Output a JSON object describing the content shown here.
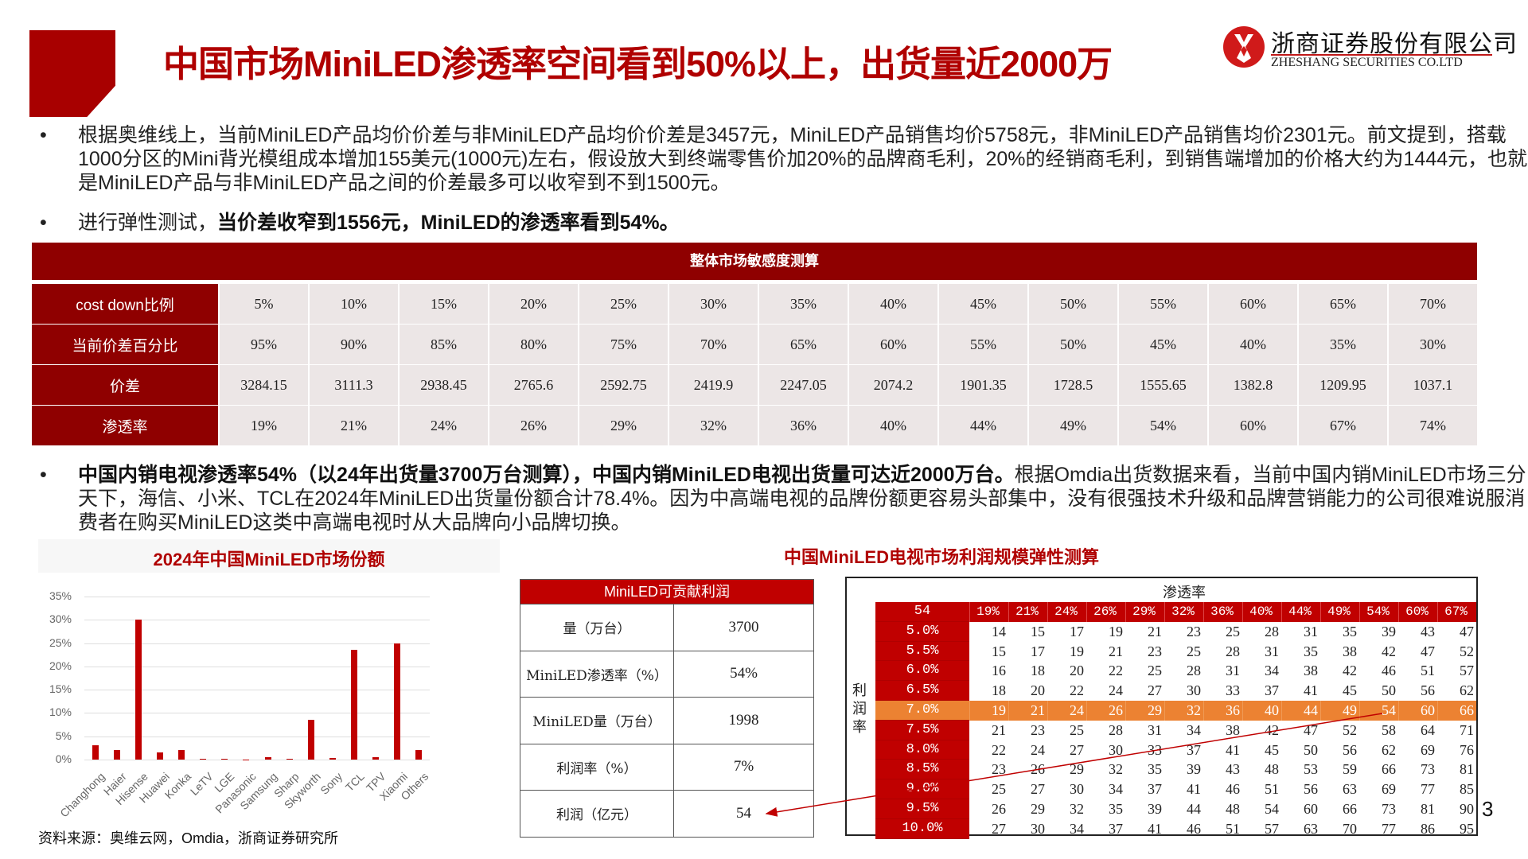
{
  "header": {
    "title": "中国市场MiniLED渗透率空间看到50%以上，出货量近2000万",
    "logo_cn": "浙商证券股份有限公司",
    "logo_en": "ZHESHANG SECURITIES CO.LTD",
    "accent_color": "#b00000"
  },
  "bullets": {
    "b1": "根据奥维线上，当前MiniLED产品均价价差与非MiniLED产品均价价差是3457元，MiniLED产品销售均价5758元，非MiniLED产品销售均价2301元。前文提到，搭载1000分区的Mini背光模组成本增加155美元(1000元)左右，假设放大到终端零售价加20%的品牌商毛利，20%的经销商毛利，到销售端增加的价格大约为1444元，也就是MiniLED产品与非MiniLED产品之间的价差最多可以收窄到不到1500元。",
    "b2_plain": "进行弹性测试，",
    "b2_bold": "当价差收窄到1556元，MiniLED的渗透率看到54%。",
    "b3_bold": "中国内销电视渗透率54%（以24年出货量3700万台测算），中国内销MiniLED电视出货量可达近2000万台。",
    "b3_plain": "根据Omdia出货数据来看，当前中国内销MiniLED市场三分天下，海信、小米、TCL在2024年MiniLED出货量份额合计78.4%。因为中高端电视的品牌份额更容易头部集中，没有很强技术升级和品牌营销能力的公司很难说服消费者在购买MiniLED这类中高端电视时从大品牌向小品牌切换。",
    "dot": "•"
  },
  "sensitivity_table": {
    "title": "整体市场敏感度测算",
    "rows": [
      {
        "label": "cost down比例",
        "values": [
          "5%",
          "10%",
          "15%",
          "20%",
          "25%",
          "30%",
          "35%",
          "40%",
          "45%",
          "50%",
          "55%",
          "60%",
          "65%",
          "70%"
        ]
      },
      {
        "label": "当前价差百分比",
        "values": [
          "95%",
          "90%",
          "85%",
          "80%",
          "75%",
          "70%",
          "65%",
          "60%",
          "55%",
          "50%",
          "45%",
          "40%",
          "35%",
          "30%"
        ]
      },
      {
        "label": "价差",
        "values": [
          "3284.15",
          "3111.3",
          "2938.45",
          "2765.6",
          "2592.75",
          "2419.9",
          "2247.05",
          "2074.2",
          "1901.35",
          "1728.5",
          "1555.65",
          "1382.8",
          "1209.95",
          "1037.1"
        ]
      },
      {
        "label": "渗透率",
        "values": [
          "19%",
          "21%",
          "24%",
          "26%",
          "29%",
          "32%",
          "36%",
          "40%",
          "44%",
          "49%",
          "54%",
          "60%",
          "67%",
          "74%"
        ]
      }
    ]
  },
  "chart_data": {
    "type": "bar",
    "title": "2024年中国MiniLED市场份额",
    "categories": [
      "Changhong",
      "Haier",
      "Hisense",
      "Huawei",
      "Konka",
      "LeTV",
      "LGE",
      "Panasonic",
      "Samsung",
      "Sharp",
      "Skyworth",
      "Sony",
      "TCL",
      "TPV",
      "Xiaomi",
      "Others"
    ],
    "values": [
      3.1,
      2.1,
      30.0,
      1.6,
      2.1,
      0.1,
      0.1,
      0.0,
      0.6,
      0.1,
      8.6,
      0.4,
      23.5,
      0.6,
      25.0,
      2.1
    ],
    "yticks": [
      "0%",
      "5%",
      "10%",
      "15%",
      "20%",
      "25%",
      "30%",
      "35%"
    ],
    "ylim": [
      0,
      35
    ],
    "xlabel": "",
    "ylabel": "",
    "grid": true,
    "bar_color": "#c00000"
  },
  "source": "资料来源：奥维云网，Omdia，浙商证券研究所",
  "profit_section_title": "中国MiniLED电视市场利润规模弹性测算",
  "profit_table": {
    "title": "MiniLED可贡献利润",
    "rows": [
      {
        "k": "量（万台）",
        "v": "3700"
      },
      {
        "k": "MiniLED渗透率（%）",
        "v": "54%"
      },
      {
        "k": "MiniLED量（万台）",
        "v": "1998"
      },
      {
        "k": "利润率（%）",
        "v": "7%"
      },
      {
        "k": "利润（亿元）",
        "v": "54"
      }
    ]
  },
  "elasticity_table": {
    "caption": "渗透率",
    "side_label": "利润率",
    "corner": "54",
    "columns": [
      "19%",
      "21%",
      "24%",
      "26%",
      "29%",
      "32%",
      "36%",
      "40%",
      "44%",
      "49%",
      "54%",
      "60%",
      "67%"
    ],
    "highlight_row": "7.0%",
    "rows": [
      {
        "label": "5.0%",
        "values": [
          "14",
          "15",
          "17",
          "19",
          "21",
          "23",
          "25",
          "28",
          "31",
          "35",
          "39",
          "43",
          "47"
        ]
      },
      {
        "label": "5.5%",
        "values": [
          "15",
          "17",
          "19",
          "21",
          "23",
          "25",
          "28",
          "31",
          "35",
          "38",
          "42",
          "47",
          "52"
        ]
      },
      {
        "label": "6.0%",
        "values": [
          "16",
          "18",
          "20",
          "22",
          "25",
          "28",
          "31",
          "34",
          "38",
          "42",
          "46",
          "51",
          "57"
        ]
      },
      {
        "label": "6.5%",
        "values": [
          "18",
          "20",
          "22",
          "24",
          "27",
          "30",
          "33",
          "37",
          "41",
          "45",
          "50",
          "56",
          "62"
        ]
      },
      {
        "label": "7.0%",
        "values": [
          "19",
          "21",
          "24",
          "26",
          "29",
          "32",
          "36",
          "40",
          "44",
          "49",
          "54",
          "60",
          "66"
        ]
      },
      {
        "label": "7.5%",
        "values": [
          "21",
          "23",
          "25",
          "28",
          "31",
          "34",
          "38",
          "42",
          "47",
          "52",
          "58",
          "64",
          "71"
        ]
      },
      {
        "label": "8.0%",
        "values": [
          "22",
          "24",
          "27",
          "30",
          "33",
          "37",
          "41",
          "45",
          "50",
          "56",
          "62",
          "69",
          "76"
        ]
      },
      {
        "label": "8.5%",
        "values": [
          "23",
          "26",
          "29",
          "32",
          "35",
          "39",
          "43",
          "48",
          "53",
          "59",
          "66",
          "73",
          "81"
        ]
      },
      {
        "label": "9.0%",
        "values": [
          "25",
          "27",
          "30",
          "34",
          "37",
          "41",
          "46",
          "51",
          "56",
          "63",
          "69",
          "77",
          "85"
        ]
      },
      {
        "label": "9.5%",
        "values": [
          "26",
          "29",
          "32",
          "35",
          "39",
          "44",
          "48",
          "54",
          "60",
          "66",
          "73",
          "81",
          "90"
        ]
      },
      {
        "label": "10.0%",
        "values": [
          "27",
          "30",
          "34",
          "37",
          "41",
          "46",
          "51",
          "57",
          "63",
          "70",
          "77",
          "86",
          "95"
        ]
      }
    ]
  },
  "page_number": "3"
}
